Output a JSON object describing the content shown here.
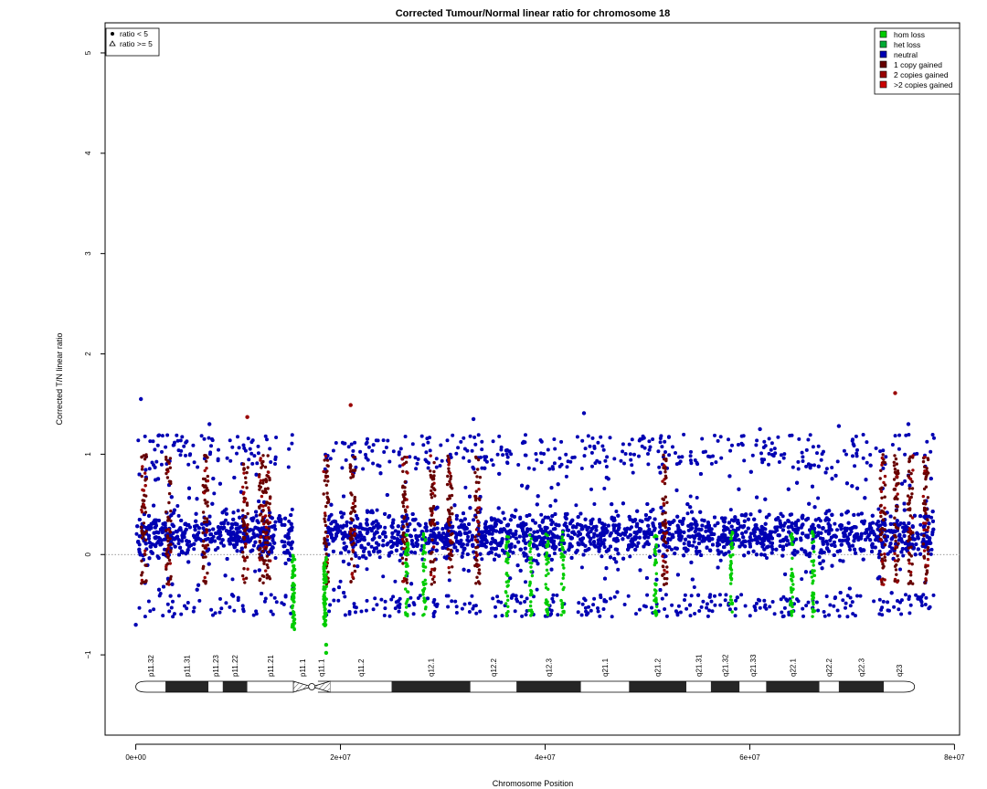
{
  "chart_data": {
    "type": "scatter",
    "title": "Corrected Tumour/Normal linear ratio for chromosome  18",
    "xlabel": "Chromosome Position",
    "ylabel": "Corrected T/N linear ratio",
    "xlim": [
      -3000000,
      80500000
    ],
    "ylim": [
      -1.8,
      5.3
    ],
    "x_ticks": [
      {
        "value": 0,
        "label": "0e+00"
      },
      {
        "value": 20000000,
        "label": "2e+07"
      },
      {
        "value": 40000000,
        "label": "4e+07"
      },
      {
        "value": 60000000,
        "label": "6e+07"
      },
      {
        "value": 80000000,
        "label": "8e+07"
      }
    ],
    "y_ticks": [
      {
        "value": -1,
        "label": "−1"
      },
      {
        "value": 0,
        "label": "0"
      },
      {
        "value": 1,
        "label": "1"
      },
      {
        "value": 2,
        "label": "2"
      },
      {
        "value": 3,
        "label": "3"
      },
      {
        "value": 4,
        "label": "4"
      },
      {
        "value": 5,
        "label": "5"
      }
    ],
    "reference_line": 0,
    "data_range": [
      0,
      78000000
    ],
    "gap": [
      15400000,
      18500000
    ],
    "baseline_band": [
      -0.45,
      0.9
    ],
    "shape_legend": {
      "placement": "top-left",
      "items": [
        {
          "label": "ratio < 5",
          "shape": "dot"
        },
        {
          "label": "ratio >= 5",
          "shape": "triangle"
        }
      ]
    },
    "series": [
      {
        "name": "hom loss",
        "color": "#00cc00"
      },
      {
        "name": "het loss",
        "color": "#00aa33"
      },
      {
        "name": "neutral",
        "color": "#0000b3"
      },
      {
        "name": "1 copy gained",
        "color": "#660000"
      },
      {
        "name": "2 copies gained",
        "color": "#990000"
      },
      {
        "name": ">2 copies gained",
        "color": "#cc0000"
      }
    ],
    "legend_placement": "top-right",
    "outliers": [
      {
        "x": 500000,
        "y": 1.55,
        "series": "neutral"
      },
      {
        "x": 21000000,
        "y": 1.49,
        "series": "2 copies gained"
      },
      {
        "x": 43800000,
        "y": 1.41,
        "series": "neutral"
      },
      {
        "x": 74200000,
        "y": 1.61,
        "series": "2 copies gained"
      },
      {
        "x": 10900000,
        "y": 1.37,
        "series": "2 copies gained"
      },
      {
        "x": 33000000,
        "y": 1.35,
        "series": "neutral"
      },
      {
        "x": 7200000,
        "y": 1.3,
        "series": "neutral"
      },
      {
        "x": 75500000,
        "y": 1.3,
        "series": "neutral"
      },
      {
        "x": 61000000,
        "y": 1.25,
        "series": "neutral"
      },
      {
        "x": 68700000,
        "y": 1.28,
        "series": "neutral"
      },
      {
        "x": 18600000,
        "y": -0.9,
        "series": "hom loss"
      },
      {
        "x": 18600000,
        "y": -0.98,
        "series": "hom loss"
      },
      {
        "x": 0,
        "y": -0.7,
        "series": "neutral"
      }
    ],
    "gain_clusters": [
      800000,
      3200000,
      6800000,
      10700000,
      12300000,
      12900000,
      18600000,
      21200000,
      26300000,
      29000000,
      30700000,
      33400000,
      51700000,
      73000000,
      74300000,
      75700000,
      77200000
    ],
    "loss_clusters": [
      15400000,
      18500000,
      26500000,
      28200000,
      36300000,
      38600000,
      40200000,
      41700000,
      50800000,
      58200000,
      64100000,
      66200000
    ],
    "ideogram": {
      "centromere": 17200000,
      "stalk": [
        15400000,
        17800000
      ],
      "bands": [
        {
          "label": "p11.32",
          "start": 0,
          "end": 2900000,
          "stain": "gneg"
        },
        {
          "label": "p11.31",
          "start": 2900000,
          "end": 7100000,
          "stain": "gpos"
        },
        {
          "label": "p11.23",
          "start": 7100000,
          "end": 8500000,
          "stain": "gneg"
        },
        {
          "label": "p11.22",
          "start": 8500000,
          "end": 10900000,
          "stain": "gpos"
        },
        {
          "label": "p11.21",
          "start": 10900000,
          "end": 15400000,
          "stain": "gneg"
        },
        {
          "label": "p11.1",
          "start": 15400000,
          "end": 17200000,
          "stain": "acen"
        },
        {
          "label": "q11.1",
          "start": 17200000,
          "end": 19000000,
          "stain": "acen"
        },
        {
          "label": "q11.2",
          "start": 19000000,
          "end": 25000000,
          "stain": "gneg"
        },
        {
          "label": "q12.1",
          "start": 25000000,
          "end": 32700000,
          "stain": "gpos"
        },
        {
          "label": "q12.2",
          "start": 32700000,
          "end": 37200000,
          "stain": "gneg"
        },
        {
          "label": "q12.3",
          "start": 37200000,
          "end": 43500000,
          "stain": "gpos"
        },
        {
          "label": "q21.1",
          "start": 43500000,
          "end": 48200000,
          "stain": "gneg"
        },
        {
          "label": "q21.2",
          "start": 48200000,
          "end": 53800000,
          "stain": "gpos"
        },
        {
          "label": "q21.31",
          "start": 53800000,
          "end": 56200000,
          "stain": "gneg"
        },
        {
          "label": "q21.32",
          "start": 56200000,
          "end": 59000000,
          "stain": "gpos"
        },
        {
          "label": "q21.33",
          "start": 59000000,
          "end": 61600000,
          "stain": "gneg"
        },
        {
          "label": "q22.1",
          "start": 61600000,
          "end": 66800000,
          "stain": "gpos"
        },
        {
          "label": "q22.2",
          "start": 66800000,
          "end": 68700000,
          "stain": "gneg"
        },
        {
          "label": "q22.3",
          "start": 68700000,
          "end": 73100000,
          "stain": "gpos"
        },
        {
          "label": "q23",
          "start": 73100000,
          "end": 76100000,
          "stain": "gneg"
        }
      ]
    }
  }
}
